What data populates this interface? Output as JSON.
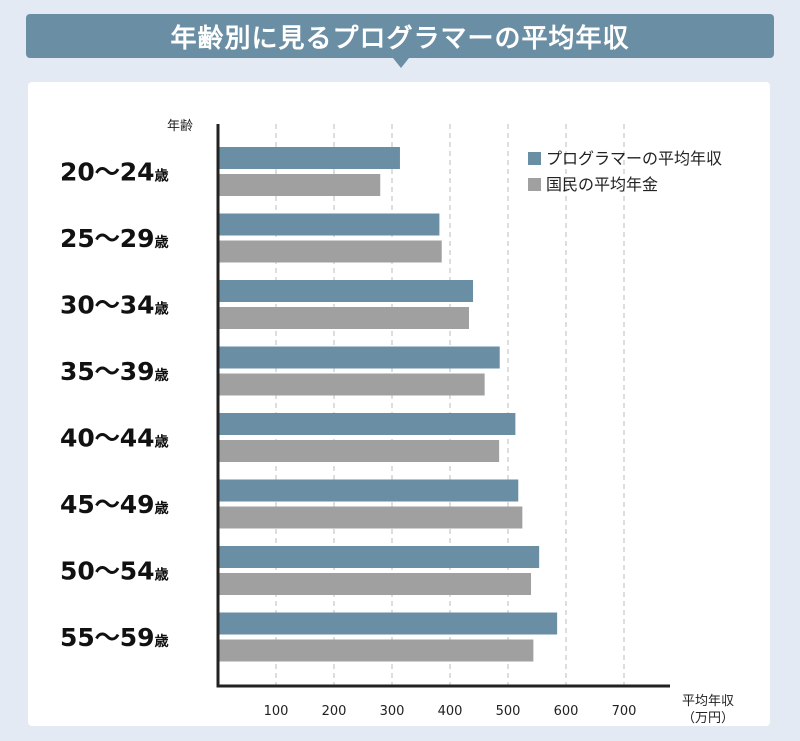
{
  "chart_data": {
    "type": "bar",
    "orientation": "horizontal",
    "title": "年齢別に見るプログラマーの平均年収",
    "ylabel": "年齢",
    "xlabel": [
      "平均年収",
      "（万円）"
    ],
    "categories": [
      "20〜24",
      "25〜29",
      "30〜34",
      "35〜39",
      "40〜44",
      "45〜49",
      "50〜54",
      "55〜59"
    ],
    "category_suffix": "歳",
    "series": [
      {
        "name": "プログラマーの平均年収",
        "color": "#6a8ea4",
        "values": [
          312,
          380,
          438,
          484,
          511,
          516,
          552,
          583
        ]
      },
      {
        "name": "国民の平均年金",
        "color": "#a0a0a0",
        "values": [
          278,
          384,
          431,
          458,
          483,
          523,
          538,
          542
        ]
      }
    ],
    "xticks": [
      100,
      200,
      300,
      400,
      500,
      600,
      700
    ],
    "xlim": [
      0,
      770
    ],
    "grid": true,
    "legend": "top-right"
  }
}
